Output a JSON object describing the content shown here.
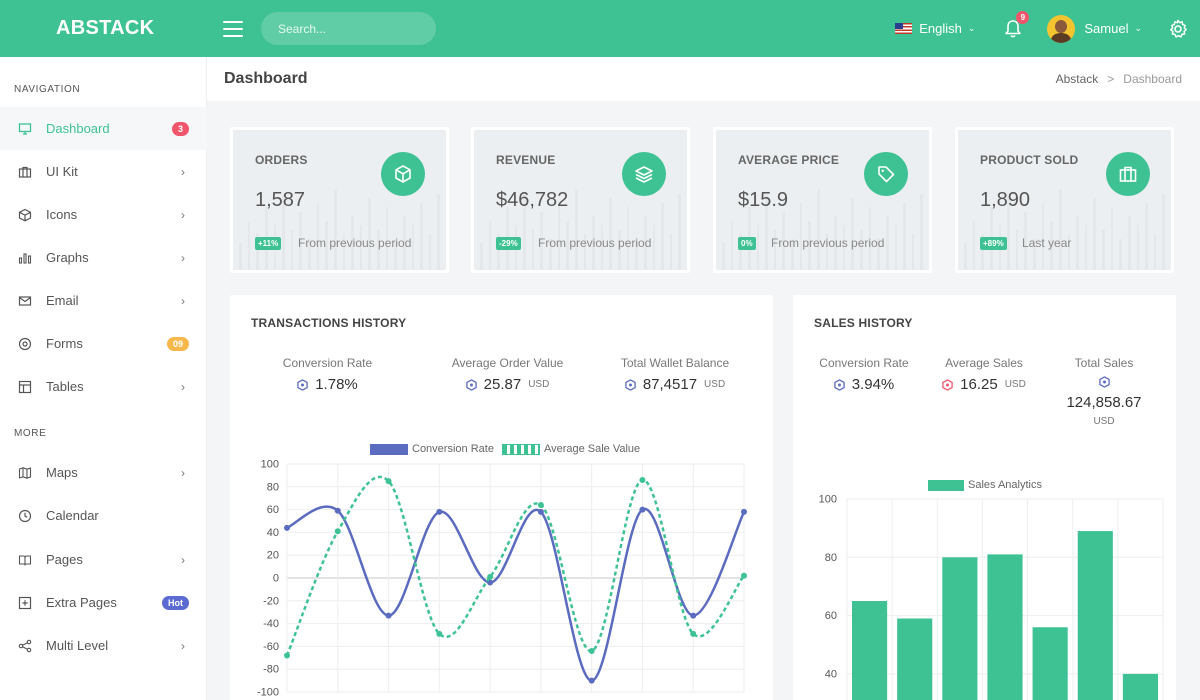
{
  "brand": "ABSTACK",
  "search": {
    "placeholder": "Search..."
  },
  "topbar": {
    "language": "English",
    "notifications": "9",
    "username": "Samuel"
  },
  "sidebar": {
    "section_navigation": "NAVIGATION",
    "section_more": "MORE",
    "items": [
      {
        "label": "Dashboard",
        "badge": "3",
        "badge_color": "#f1556c"
      },
      {
        "label": "UI Kit"
      },
      {
        "label": "Icons"
      },
      {
        "label": "Graphs"
      },
      {
        "label": "Email"
      },
      {
        "label": "Forms",
        "badge": "09",
        "badge_color": "#f7b84b"
      },
      {
        "label": "Tables"
      },
      {
        "label": "Maps"
      },
      {
        "label": "Calendar"
      },
      {
        "label": "Pages"
      },
      {
        "label": "Extra Pages",
        "badge": "Hot",
        "badge_color": "#5b6bd1"
      },
      {
        "label": "Multi Level"
      }
    ]
  },
  "page": {
    "title": "Dashboard",
    "breadcrumb_root": "Abstack",
    "breadcrumb_sep": ">",
    "breadcrumb_current": "Dashboard"
  },
  "stats": [
    {
      "title": "ORDERS",
      "value": "1,587",
      "badge": "+11%",
      "note": "From previous period",
      "icon": "cube-icon"
    },
    {
      "title": "REVENUE",
      "value": "$46,782",
      "badge": "-29%",
      "note": "From previous period",
      "icon": "layers-icon"
    },
    {
      "title": "AVERAGE PRICE",
      "value": "$15.9",
      "badge": "0%",
      "note": "From previous period",
      "icon": "tag-icon"
    },
    {
      "title": "PRODUCT SOLD",
      "value": "1,890",
      "badge": "+89%",
      "note": "Last year",
      "icon": "briefcase-icon"
    }
  ],
  "transactions": {
    "title": "TRANSACTIONS HISTORY",
    "metrics": [
      {
        "label": "Conversion Rate",
        "value": "1.78%",
        "unit": ""
      },
      {
        "label": "Average Order Value",
        "value": "25.87",
        "unit": "USD"
      },
      {
        "label": "Total Wallet Balance",
        "value": "87,4517",
        "unit": "USD"
      }
    ]
  },
  "sales": {
    "title": "SALES HISTORY",
    "metrics": [
      {
        "label": "Conversion Rate",
        "value": "3.94%",
        "unit": ""
      },
      {
        "label": "Average Sales",
        "value": "16.25",
        "unit": "USD"
      },
      {
        "label": "Total Sales",
        "value": "124,858.67",
        "unit": "USD"
      }
    ]
  },
  "colors": {
    "accent": "#3ec294",
    "series_blue": "#5b6bbf",
    "red": "#f1556c"
  },
  "chart_data": [
    {
      "type": "line",
      "title": "",
      "ylim": [
        -100,
        100
      ],
      "yticks": [
        100,
        80,
        60,
        40,
        20,
        0,
        -20,
        -40,
        -60,
        -80,
        -100
      ],
      "legend_position": "top",
      "series": [
        {
          "name": "Conversion Rate",
          "color": "#5b6bbf",
          "style": "solid",
          "values": [
            44,
            59,
            -33,
            58,
            -4,
            58,
            -90,
            60,
            -33,
            58
          ]
        },
        {
          "name": "Average Sale Value",
          "color": "#3ec294",
          "style": "dashed",
          "values": [
            -68,
            41,
            85,
            -49,
            1,
            64,
            -64,
            86,
            -49,
            2
          ]
        }
      ]
    },
    {
      "type": "bar",
      "title": "",
      "yticks": [
        100,
        80,
        60,
        40
      ],
      "legend_position": "top",
      "series": [
        {
          "name": "Sales Analytics",
          "color": "#3ec294",
          "values": [
            65,
            59,
            80,
            81,
            56,
            89,
            40
          ]
        }
      ]
    }
  ]
}
